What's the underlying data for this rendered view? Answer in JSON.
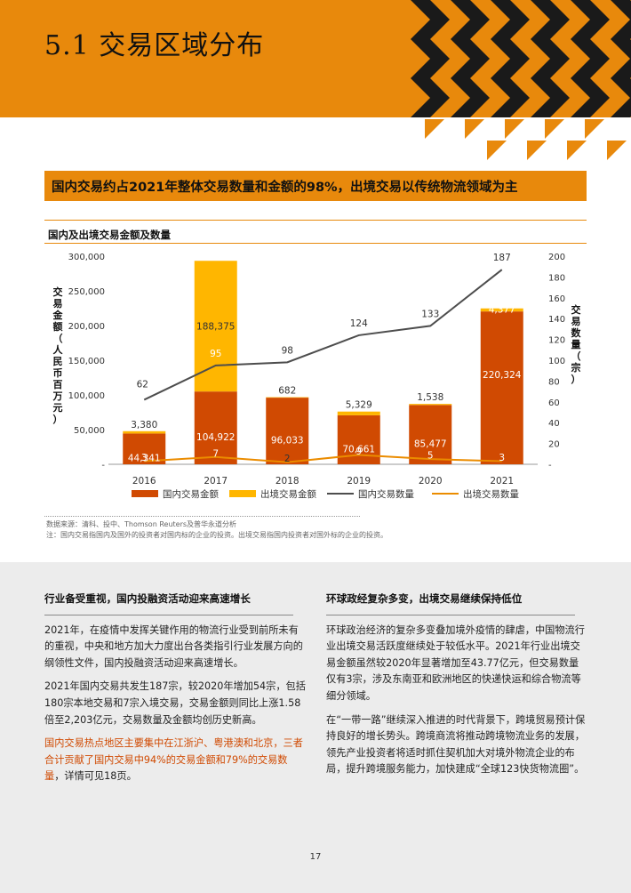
{
  "header": {
    "title": "5.1 交易区域分布"
  },
  "headline": "国内交易约占2021年整体交易数量和金额的98%，出境交易以传统物流领域为主",
  "chart_title": "国内及出境交易金额及数量",
  "chart_data": {
    "type": "bar",
    "categories": [
      "2016",
      "2017",
      "2018",
      "2019",
      "2020",
      "2021"
    ],
    "series": [
      {
        "name": "国内交易金额",
        "kind": "bar",
        "axis": "left",
        "color": "#d04a02",
        "values": [
          44341,
          104922,
          96033,
          70661,
          85477,
          220324
        ]
      },
      {
        "name": "出境交易金额",
        "kind": "bar",
        "axis": "left",
        "color": "#ffb600",
        "values": [
          3380,
          188375,
          682,
          5329,
          1538,
          4377
        ]
      },
      {
        "name": "国内交易数量",
        "kind": "line",
        "axis": "right",
        "color": "#4d4d4d",
        "values": [
          62,
          95,
          98,
          124,
          133,
          187
        ]
      },
      {
        "name": "出境交易数量",
        "kind": "line",
        "axis": "right",
        "color": "#eb8c00",
        "values": [
          3,
          7,
          2,
          9,
          5,
          3
        ]
      }
    ],
    "bar_labels": {
      "domestic": [
        "44,341",
        "104,922",
        "96,033",
        "70,661",
        "85,477",
        "220,324"
      ],
      "outbound": [
        "3,380",
        "188,375",
        "682",
        "5,329",
        "1,538",
        "4,377"
      ]
    },
    "line_labels": {
      "domestic": [
        "62",
        "95",
        "98",
        "124",
        "133",
        "187"
      ],
      "outbound": [
        "3",
        "7",
        "2",
        "9",
        "5",
        "3"
      ]
    },
    "ylabel": "交易金额（人民币百万元）",
    "y2label": "交易数量（宗）",
    "ylim": [
      0,
      300000
    ],
    "y2lim": [
      0,
      200
    ],
    "yticks": [
      "-",
      "50,000",
      "100,000",
      "150,000",
      "200,000",
      "250,000",
      "300,000"
    ],
    "y2ticks": [
      "-",
      "20",
      "40",
      "60",
      "80",
      "100",
      "120",
      "140",
      "160",
      "180",
      "200"
    ],
    "stacked": true,
    "legend": "bottom"
  },
  "notes": {
    "source": "数据来源：清科、投中、Thomson Reuters及普华永道分析",
    "note": "注：国内交易指国内及国外的投资者对国内标的企业的投资。出境交易指国内投资者对国外标的企业的投资。"
  },
  "left_col": {
    "heading": "行业备受重视，国内投融资活动迎来高速增长",
    "p1": "2021年，在疫情中发挥关键作用的物流行业受到前所未有的重视，中央和地方加大力度出台各类指引行业发展方向的纲领性文件，国内投融资活动迎来高速增长。",
    "p2": "2021年国内交易共发生187宗，较2020年增加54宗，包括180宗本地交易和7宗入境交易，交易金额则同比上涨1.58倍至2,203亿元，交易数量及金额均创历史新高。",
    "p3_highlight": "国内交易热点地区主要集中在江浙沪、粤港澳和北京，三者合计贡献了国内交易中94%的交易金额和79%的交易数量",
    "p3_tail": "，详情可见18页。"
  },
  "right_col": {
    "heading": "环球政经复杂多变，出境交易继续保持低位",
    "p1": "环球政治经济的复杂多变叠加境外疫情的肆虐，中国物流行业出境交易活跃度继续处于较低水平。2021年行业出境交易金额虽然较2020年显著增加至43.77亿元，但交易数量仅有3宗，涉及东南亚和欧洲地区的快递快运和综合物流等细分领域。",
    "p2": "在“一带一路”继续深入推进的时代背景下，跨境贸易预计保持良好的增长势头。跨境商流将推动跨境物流业务的发展，领先产业投资者将适时抓住契机加大对境外物流企业的布局，提升跨境服务能力，加快建成“全球123快货物流圈”。"
  },
  "page_number": "17",
  "colors": {
    "accent": "#e8890c",
    "domestic": "#d04a02",
    "outbound": "#ffb600",
    "grey_panel": "#ececec"
  }
}
